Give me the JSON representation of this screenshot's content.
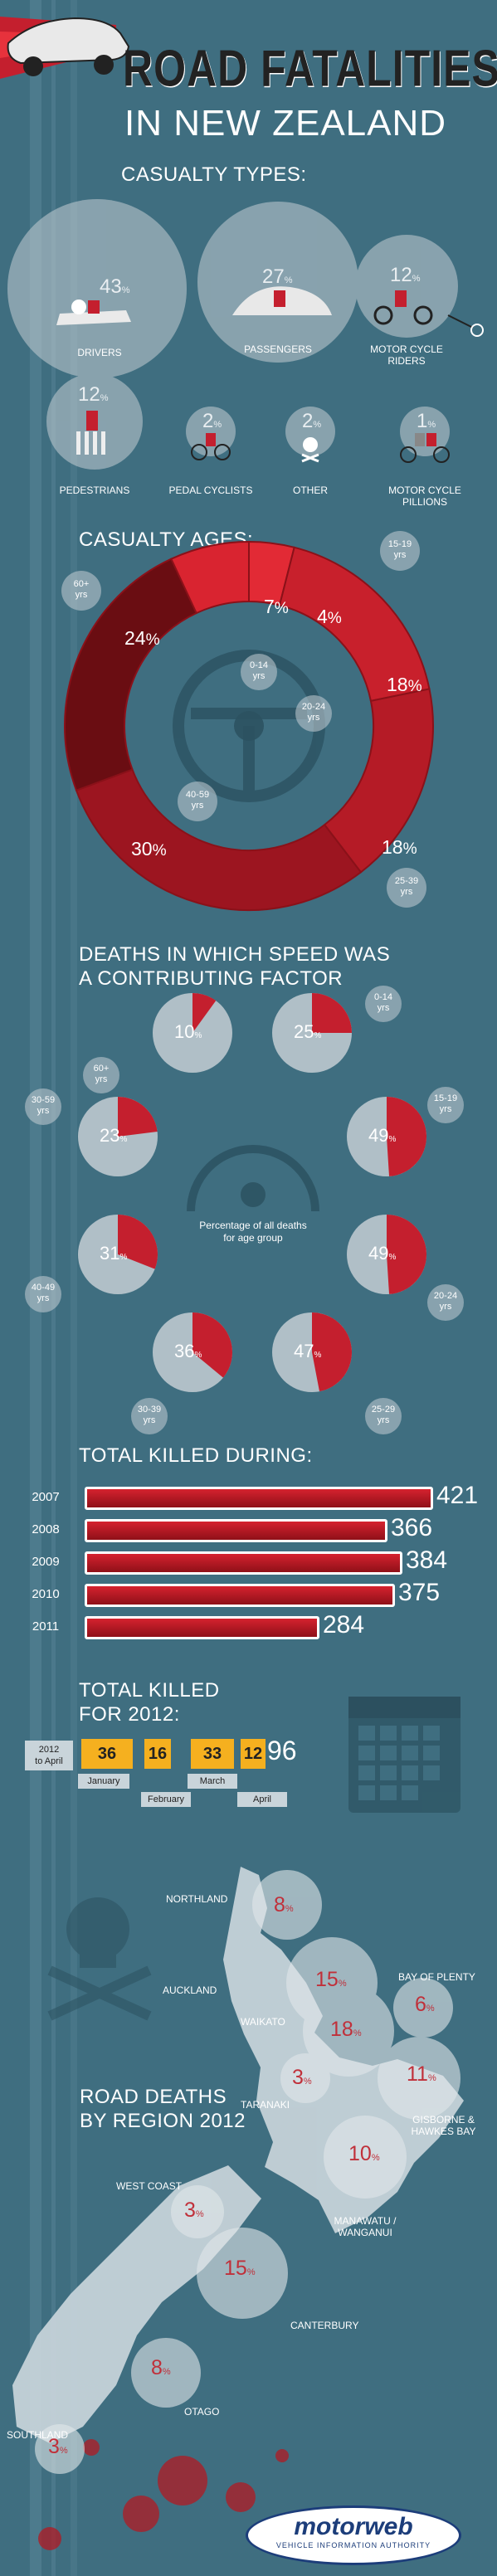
{
  "header": {
    "title_line1": "ROAD FATALITIES",
    "title_line2": "IN NEW ZEALAND"
  },
  "casualty_types": {
    "heading": "CASUALTY TYPES:",
    "items": [
      {
        "label": "DRIVERS",
        "value": "43",
        "unit": "%"
      },
      {
        "label": "PASSENGERS",
        "value": "27",
        "unit": "%"
      },
      {
        "label": "MOTOR CYCLE RIDERS",
        "value": "12",
        "unit": "%"
      },
      {
        "label": "PEDESTRIANS",
        "value": "12",
        "unit": "%"
      },
      {
        "label": "PEDAL CYCLISTS",
        "value": "2",
        "unit": "%"
      },
      {
        "label": "OTHER",
        "value": "2",
        "unit": "%"
      },
      {
        "label": "MOTOR CYCLE PILLIONS",
        "value": "1",
        "unit": "%"
      }
    ]
  },
  "casualty_ages": {
    "heading": "CASUALTY AGES:",
    "segments": [
      {
        "label": "15-19 yrs",
        "value": 4
      },
      {
        "label": "20-24 yrs",
        "value": 18
      },
      {
        "label": "25-39 yrs",
        "value": 18
      },
      {
        "label": "40-59 yrs",
        "value": 30
      },
      {
        "label": "60+ yrs",
        "value": 24
      },
      {
        "label": "0-14 yrs",
        "value": 7
      }
    ],
    "tags": {
      "t60": "60+",
      "t1519": "15-19",
      "t014": "0-14",
      "t2024": "20-24",
      "t4059": "40-59",
      "t2539": "25-39",
      "yrs": "yrs"
    },
    "unit": "%"
  },
  "speed": {
    "heading_line1": "DEATHS IN WHICH SPEED WAS",
    "heading_line2": "A CONTRIBUTING FACTOR",
    "center_line1": "Percentage of all deaths",
    "center_line2": "for age group",
    "items": [
      {
        "label": "0-14",
        "value": 25
      },
      {
        "label": "15-19",
        "value": 49
      },
      {
        "label": "20-24",
        "value": 49
      },
      {
        "label": "25-29",
        "value": 47
      },
      {
        "label": "30-39",
        "value": 36
      },
      {
        "label": "40-49",
        "value": 31
      },
      {
        "label": "30-59",
        "value": 23
      },
      {
        "label": "60+",
        "value": 10
      }
    ],
    "yrs": "yrs",
    "unit": "%"
  },
  "total_killed": {
    "heading": "TOTAL KILLED DURING:",
    "rows": [
      {
        "year": "2007",
        "value": 421
      },
      {
        "year": "2008",
        "value": 366
      },
      {
        "year": "2009",
        "value": 384
      },
      {
        "year": "2010",
        "value": 375
      },
      {
        "year": "2011",
        "value": 284
      }
    ]
  },
  "total_2012": {
    "heading_line1": "TOTAL KILLED",
    "heading_line2": "FOR 2012:",
    "badge_line1": "2012",
    "badge_line2": "to April",
    "months": [
      {
        "label": "January",
        "value": "36"
      },
      {
        "label": "February",
        "value": "16"
      },
      {
        "label": "March",
        "value": "33"
      },
      {
        "label": "April",
        "value": "12"
      }
    ],
    "total": "96"
  },
  "regions": {
    "heading_line1": "ROAD DEATHS",
    "heading_line2": "BY REGION 2012",
    "items": [
      {
        "label": "NORTHLAND",
        "value": "8"
      },
      {
        "label": "AUCKLAND",
        "value": "15"
      },
      {
        "label": "BAY OF PLENTY",
        "value": "6"
      },
      {
        "label": "WAIKATO",
        "value": "18"
      },
      {
        "label": "TARANAKI",
        "value": "3"
      },
      {
        "label": "GISBORNE & HAWKES BAY",
        "value": "11"
      },
      {
        "label": "MANAWATU / WANGANUI",
        "value": "10"
      },
      {
        "label": "WEST COAST",
        "value": "3"
      },
      {
        "label": "CANTERBURY",
        "value": "15"
      },
      {
        "label": "OTAGO",
        "value": "8"
      },
      {
        "label": "SOUTHLAND",
        "value": "3"
      }
    ],
    "unit": "%"
  },
  "brand": {
    "name": "motorweb",
    "tagline": "VEHICLE INFORMATION AUTHORITY"
  },
  "colors": {
    "background": "#3f6e80",
    "accent_red": "#c41f2e",
    "dark_red": "#7a0f14",
    "circle": "#c4ced3"
  }
}
